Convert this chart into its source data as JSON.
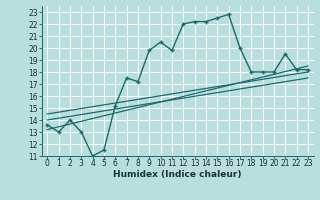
{
  "xlabel": "Humidex (Indice chaleur)",
  "background_color": "#b8dede",
  "line_color": "#1a6b6b",
  "xlim": [
    -0.5,
    23.5
  ],
  "ylim": [
    11,
    23.5
  ],
  "yticks": [
    11,
    12,
    13,
    14,
    15,
    16,
    17,
    18,
    19,
    20,
    21,
    22,
    23
  ],
  "xticks": [
    0,
    1,
    2,
    3,
    4,
    5,
    6,
    7,
    8,
    9,
    10,
    11,
    12,
    13,
    14,
    15,
    16,
    17,
    18,
    19,
    20,
    21,
    22,
    23
  ],
  "main_x": [
    0,
    1,
    2,
    3,
    4,
    5,
    6,
    7,
    8,
    9,
    10,
    11,
    12,
    13,
    14,
    15,
    16,
    17,
    18,
    19,
    20,
    21,
    22,
    23
  ],
  "main_y": [
    13.6,
    13.0,
    14.0,
    13.0,
    11.0,
    11.5,
    15.2,
    17.5,
    17.2,
    19.8,
    20.5,
    19.8,
    22.0,
    22.2,
    22.2,
    22.5,
    22.8,
    20.0,
    18.0,
    18.0,
    18.0,
    19.5,
    18.2,
    18.2
  ],
  "trend_lines": [
    {
      "x": [
        0,
        23
      ],
      "y": [
        14.0,
        17.5
      ]
    },
    {
      "x": [
        0,
        23
      ],
      "y": [
        14.5,
        18.0
      ]
    },
    {
      "x": [
        0,
        23
      ],
      "y": [
        13.2,
        18.5
      ]
    }
  ]
}
